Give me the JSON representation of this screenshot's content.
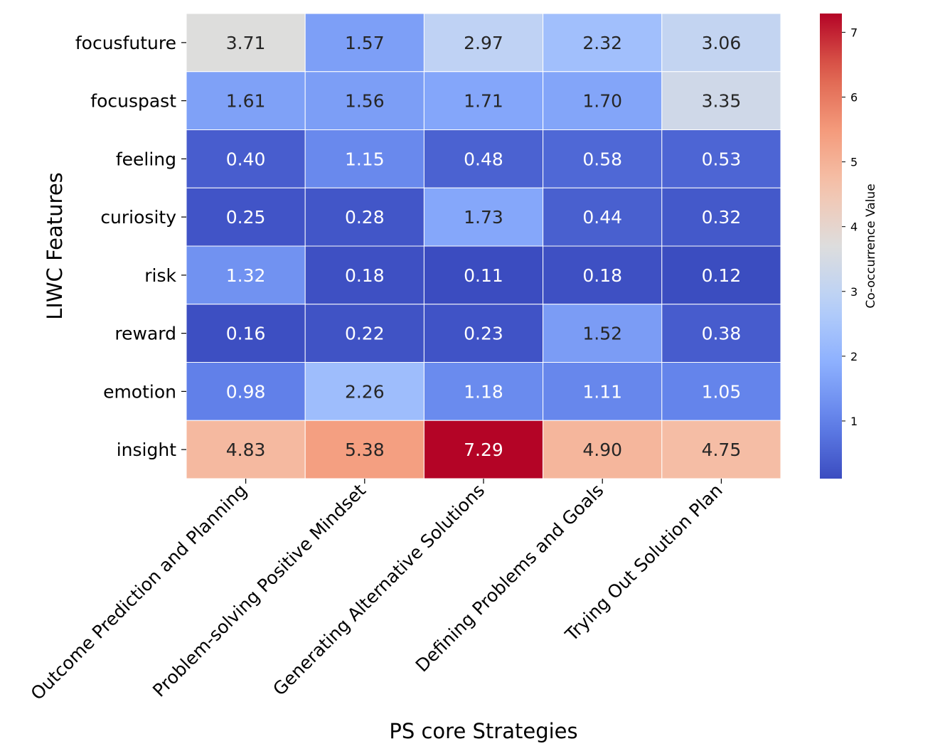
{
  "chart_data": {
    "type": "heatmap",
    "xlabel": "PS core Strategies",
    "ylabel": "LIWC Features",
    "x_categories": [
      "Outcome Prediction and Planning",
      "Problem-solving Positive Mindset",
      "Generating Alternative Solutions",
      "Defining Problems and Goals",
      "Trying Out Solution Plan"
    ],
    "y_categories": [
      "focusfuture",
      "focuspast",
      "feeling",
      "curiosity",
      "risk",
      "reward",
      "emotion",
      "insight"
    ],
    "values": [
      [
        3.71,
        1.57,
        2.97,
        2.32,
        3.06
      ],
      [
        1.61,
        1.56,
        1.71,
        1.7,
        3.35
      ],
      [
        0.4,
        1.15,
        0.48,
        0.58,
        0.53
      ],
      [
        0.25,
        0.28,
        1.73,
        0.44,
        0.32
      ],
      [
        1.32,
        0.18,
        0.11,
        0.18,
        0.12
      ],
      [
        0.16,
        0.22,
        0.23,
        1.52,
        0.38
      ],
      [
        0.98,
        2.26,
        1.18,
        1.11,
        1.05
      ],
      [
        4.83,
        5.38,
        7.29,
        4.9,
        4.75
      ]
    ],
    "value_labels": [
      [
        "3.71",
        "1.57",
        "2.97",
        "2.32",
        "3.06"
      ],
      [
        "1.61",
        "1.56",
        "1.71",
        "1.70",
        "3.35"
      ],
      [
        "0.40",
        "1.15",
        "0.48",
        "0.58",
        "0.53"
      ],
      [
        "0.25",
        "0.28",
        "1.73",
        "0.44",
        "0.32"
      ],
      [
        "1.32",
        "0.18",
        "0.11",
        "0.18",
        "0.12"
      ],
      [
        "0.16",
        "0.22",
        "0.23",
        "1.52",
        "0.38"
      ],
      [
        "0.98",
        "2.26",
        "1.18",
        "1.11",
        "1.05"
      ],
      [
        "4.83",
        "5.38",
        "7.29",
        "4.90",
        "4.75"
      ]
    ],
    "colormap": "coolwarm",
    "colorbar": {
      "label": "Co-occurrence Value",
      "range": [
        0.11,
        7.29
      ],
      "ticks": [
        "1",
        "2",
        "3",
        "4",
        "5",
        "6",
        "7"
      ]
    }
  }
}
